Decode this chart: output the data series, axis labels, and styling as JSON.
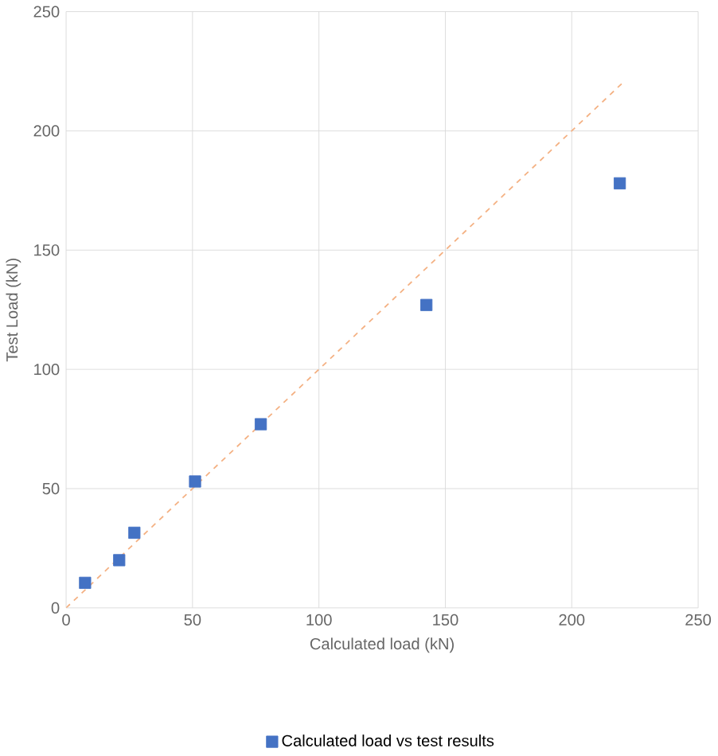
{
  "chart_data": {
    "type": "scatter",
    "xlabel": "Calculated load (kN)",
    "ylabel": "Test Load (kN)",
    "xlim": [
      0,
      250
    ],
    "ylim": [
      0,
      250
    ],
    "xticks": [
      0,
      50,
      100,
      150,
      200,
      250
    ],
    "yticks": [
      0,
      50,
      100,
      150,
      200,
      250
    ],
    "grid": true,
    "legend": "bottom",
    "series": [
      {
        "name": "Calculated load vs test results",
        "color": "#4472c4",
        "marker": "square",
        "x": [
          7.5,
          21,
          27,
          51,
          77,
          142.5,
          219
        ],
        "values": [
          10.5,
          20,
          31.5,
          53,
          77,
          127,
          178
        ]
      },
      {
        "type": "line",
        "color": "#f4b183",
        "line_style": "dashed",
        "marker": "none",
        "x": [
          0,
          220
        ],
        "values": [
          0,
          220
        ]
      }
    ]
  }
}
